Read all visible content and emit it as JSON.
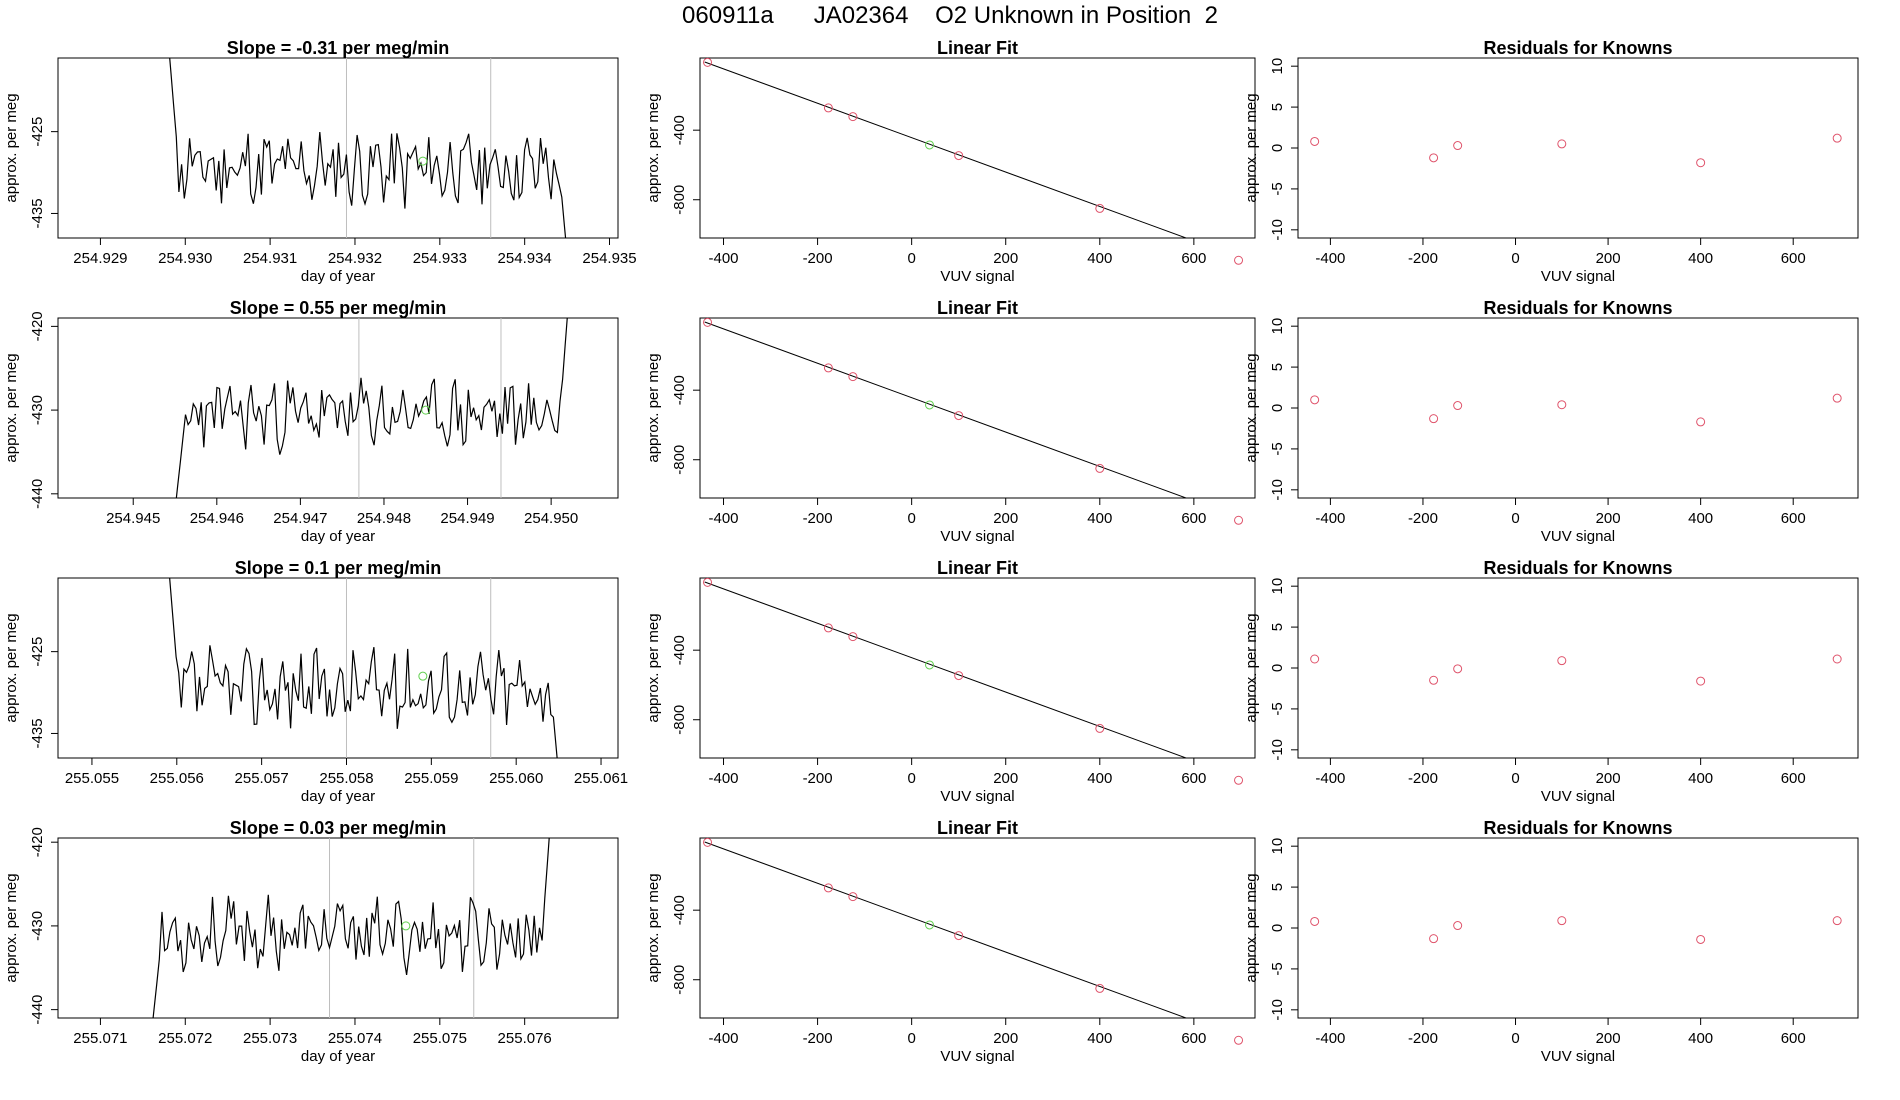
{
  "page_title": "060911a      JA02364    O2 Unknown in Position  2",
  "colors": {
    "axis": "#000000",
    "trace": "#000000",
    "guide": "#bebebe",
    "known": "#df536b",
    "unknown": "#61d04f",
    "fit": "#000000"
  },
  "chart_data": [
    {
      "type": "line",
      "title": "Slope =  -0.31  per meg/min",
      "xlabel": "day of year",
      "ylabel": "approx. per meg",
      "xlim": [
        254.9285,
        254.9351
      ],
      "ylim": [
        -438.0,
        -416.0
      ],
      "xticks": [
        "254.929",
        "254.930",
        "254.931",
        "254.932",
        "254.933",
        "254.934",
        "254.935"
      ],
      "yticks": [
        "-425",
        "-435"
      ],
      "grid": false,
      "guides_x": [
        254.9319,
        254.9336
      ],
      "marker": {
        "x": 254.9328,
        "y": -428.6
      },
      "seed": 11,
      "x_range": [
        254.9298,
        254.9345
      ],
      "baseline": -429.5,
      "noise": 4,
      "start_y": -414,
      "end_y": -440
    },
    {
      "type": "scatter",
      "title": "Linear Fit",
      "xlabel": "VUV signal",
      "ylabel": "approx. per meg",
      "xlim": [
        -450,
        730
      ],
      "ylim": [
        -1020,
        15
      ],
      "xticks": [
        "-400",
        "-200",
        "0",
        "200",
        "400",
        "600"
      ],
      "yticks": [
        "-400",
        "-800"
      ],
      "known": [
        [
          -434,
          -10
        ],
        [
          -177,
          -272
        ],
        [
          -125,
          -322
        ],
        [
          100,
          -546
        ],
        [
          400,
          -850
        ],
        [
          695,
          -1148
        ]
      ],
      "unknown": [
        [
          38,
          -485
        ]
      ],
      "fit_line": [
        [
          -440,
          -8
        ],
        [
          715,
          -1150
        ]
      ]
    },
    {
      "type": "scatter",
      "title": "Residuals for Knowns",
      "xlabel": "VUV signal",
      "ylabel": "approx. per meg",
      "xlim": [
        -470,
        740
      ],
      "ylim": [
        -11,
        11
      ],
      "xticks": [
        "-400",
        "-200",
        "0",
        "200",
        "400",
        "600"
      ],
      "yticks": [
        "10",
        "5",
        "0",
        "-5",
        "-10"
      ],
      "known": [
        [
          -434,
          0.8
        ],
        [
          -177,
          -1.2
        ],
        [
          -125,
          0.3
        ],
        [
          100,
          0.5
        ],
        [
          400,
          -1.8
        ],
        [
          695,
          1.2
        ]
      ]
    },
    {
      "type": "line",
      "title": "Slope =  0.55  per meg/min",
      "xlabel": "day of year",
      "ylabel": "approx. per meg",
      "xlim": [
        254.9441,
        254.9508
      ],
      "ylim": [
        -440.5,
        -419.0
      ],
      "xticks": [
        "254.945",
        "254.946",
        "254.947",
        "254.948",
        "254.949",
        "254.950"
      ],
      "yticks": [
        "-420",
        "-430",
        "-440"
      ],
      "grid": false,
      "guides_x": [
        254.9477,
        254.9494
      ],
      "marker": {
        "x": 254.9485,
        "y": -430.0
      },
      "seed": 23,
      "x_range": [
        254.9455,
        254.9502
      ],
      "baseline": -430.5,
      "noise": 3.5,
      "start_y": -442,
      "end_y": -418
    },
    {
      "type": "scatter",
      "title": "Linear Fit",
      "xlabel": "VUV signal",
      "ylabel": "approx. per meg",
      "xlim": [
        -450,
        730
      ],
      "ylim": [
        -1020,
        15
      ],
      "xticks": [
        "-400",
        "-200",
        "0",
        "200",
        "400",
        "600"
      ],
      "yticks": [
        "-400",
        "-800"
      ],
      "known": [
        [
          -434,
          -10
        ],
        [
          -177,
          -272
        ],
        [
          -125,
          -322
        ],
        [
          100,
          -546
        ],
        [
          400,
          -850
        ],
        [
          695,
          -1148
        ]
      ],
      "unknown": [
        [
          38,
          -485
        ]
      ],
      "fit_line": [
        [
          -440,
          -8
        ],
        [
          715,
          -1150
        ]
      ]
    },
    {
      "type": "scatter",
      "title": "Residuals for Knowns",
      "xlabel": "VUV signal",
      "ylabel": "approx. per meg",
      "xlim": [
        -470,
        740
      ],
      "ylim": [
        -11,
        11
      ],
      "xticks": [
        "-400",
        "-200",
        "0",
        "200",
        "400",
        "600"
      ],
      "yticks": [
        "10",
        "5",
        "0",
        "-5",
        "-10"
      ],
      "known": [
        [
          -434,
          1.0
        ],
        [
          -177,
          -1.3
        ],
        [
          -125,
          0.3
        ],
        [
          100,
          0.4
        ],
        [
          400,
          -1.7
        ],
        [
          695,
          1.2
        ]
      ]
    },
    {
      "type": "line",
      "title": "Slope =  0.1  per meg/min",
      "xlabel": "day of year",
      "ylabel": "approx. per meg",
      "xlim": [
        255.0546,
        255.0612
      ],
      "ylim": [
        -438.0,
        -416.0
      ],
      "xticks": [
        "255.055",
        "255.056",
        "255.057",
        "255.058",
        "255.059",
        "255.060",
        "255.061"
      ],
      "yticks": [
        "-425",
        "-435"
      ],
      "grid": false,
      "guides_x": [
        255.058,
        255.0597
      ],
      "marker": {
        "x": 255.0589,
        "y": -428.0
      },
      "seed": 37,
      "x_range": [
        255.0559,
        255.0605
      ],
      "baseline": -429.5,
      "noise": 4,
      "start_y": -414,
      "end_y": -440
    },
    {
      "type": "scatter",
      "title": "Linear Fit",
      "xlabel": "VUV signal",
      "ylabel": "approx. per meg",
      "xlim": [
        -450,
        730
      ],
      "ylim": [
        -1020,
        15
      ],
      "xticks": [
        "-400",
        "-200",
        "0",
        "200",
        "400",
        "600"
      ],
      "yticks": [
        "-400",
        "-800"
      ],
      "known": [
        [
          -434,
          -10
        ],
        [
          -177,
          -272
        ],
        [
          -125,
          -322
        ],
        [
          100,
          -546
        ],
        [
          400,
          -850
        ],
        [
          695,
          -1148
        ]
      ],
      "unknown": [
        [
          38,
          -485
        ]
      ],
      "fit_line": [
        [
          -440,
          -8
        ],
        [
          715,
          -1150
        ]
      ]
    },
    {
      "type": "scatter",
      "title": "Residuals for Knowns",
      "xlabel": "VUV signal",
      "ylabel": "approx. per meg",
      "xlim": [
        -470,
        740
      ],
      "ylim": [
        -11,
        11
      ],
      "xticks": [
        "-400",
        "-200",
        "0",
        "200",
        "400",
        "600"
      ],
      "yticks": [
        "10",
        "5",
        "0",
        "-5",
        "-10"
      ],
      "known": [
        [
          -434,
          1.1
        ],
        [
          -177,
          -1.5
        ],
        [
          -125,
          -0.1
        ],
        [
          100,
          0.9
        ],
        [
          400,
          -1.6
        ],
        [
          695,
          1.1
        ]
      ]
    },
    {
      "type": "line",
      "title": "Slope =  0.03  per meg/min",
      "xlabel": "day of year",
      "ylabel": "approx. per meg",
      "xlim": [
        255.0705,
        255.0771
      ],
      "ylim": [
        -441.0,
        -419.5
      ],
      "xticks": [
        "255.071",
        "255.072",
        "255.073",
        "255.074",
        "255.075",
        "255.076"
      ],
      "yticks": [
        "-420",
        "-430",
        "-440"
      ],
      "grid": false,
      "guides_x": [
        255.0737,
        255.0754
      ],
      "marker": {
        "x": 255.0746,
        "y": -430.0
      },
      "seed": 53,
      "x_range": [
        255.0716,
        255.0763
      ],
      "baseline": -431.0,
      "noise": 3.5,
      "start_y": -443,
      "end_y": -418
    },
    {
      "type": "scatter",
      "title": "Linear Fit",
      "xlabel": "VUV signal",
      "ylabel": "approx. per meg",
      "xlim": [
        -450,
        730
      ],
      "ylim": [
        -1020,
        15
      ],
      "xticks": [
        "-400",
        "-200",
        "0",
        "200",
        "400",
        "600"
      ],
      "yticks": [
        "-400",
        "-800"
      ],
      "known": [
        [
          -434,
          -10
        ],
        [
          -177,
          -272
        ],
        [
          -125,
          -322
        ],
        [
          100,
          -546
        ],
        [
          400,
          -850
        ],
        [
          695,
          -1148
        ]
      ],
      "unknown": [
        [
          38,
          -485
        ]
      ],
      "fit_line": [
        [
          -440,
          -8
        ],
        [
          715,
          -1150
        ]
      ]
    },
    {
      "type": "scatter",
      "title": "Residuals for Knowns",
      "xlabel": "VUV signal",
      "ylabel": "approx. per meg",
      "xlim": [
        -470,
        740
      ],
      "ylim": [
        -11,
        11
      ],
      "xticks": [
        "-400",
        "-200",
        "0",
        "200",
        "400",
        "600"
      ],
      "yticks": [
        "10",
        "5",
        "0",
        "-5",
        "-10"
      ],
      "known": [
        [
          -434,
          0.8
        ],
        [
          -177,
          -1.3
        ],
        [
          -125,
          0.3
        ],
        [
          100,
          0.9
        ],
        [
          400,
          -1.4
        ],
        [
          695,
          0.9
        ]
      ]
    }
  ]
}
